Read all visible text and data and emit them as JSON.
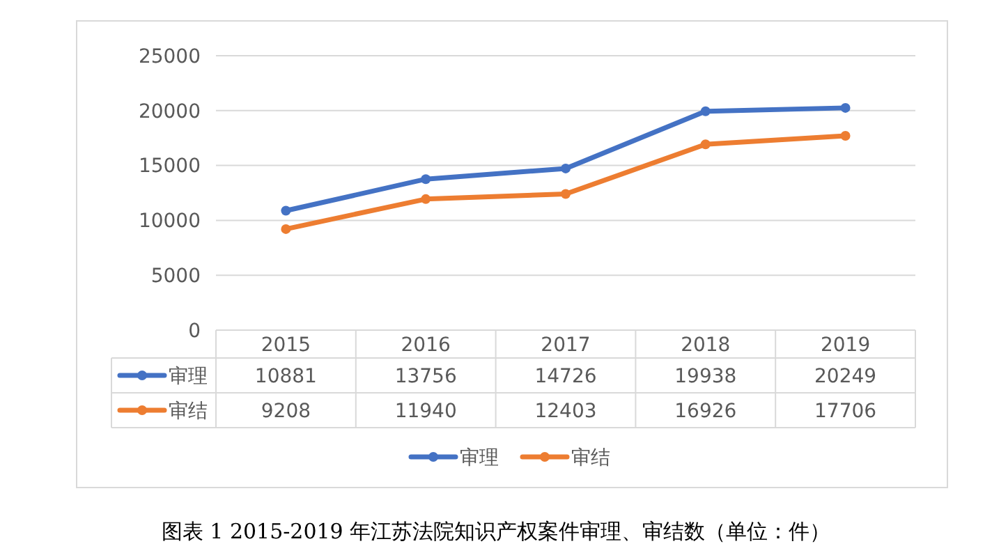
{
  "chart_data": {
    "type": "line",
    "categories": [
      "2015",
      "2016",
      "2017",
      "2018",
      "2019"
    ],
    "series": [
      {
        "name": "审理",
        "color": "#4472c4",
        "values": [
          10881,
          13756,
          14726,
          19938,
          20249
        ]
      },
      {
        "name": "审结",
        "color": "#ed7d31",
        "values": [
          9208,
          11940,
          12403,
          16926,
          17706
        ]
      }
    ],
    "ylim": [
      0,
      25000
    ],
    "yticks": [
      0,
      5000,
      10000,
      15000,
      20000,
      25000
    ],
    "grid": "y",
    "marker": "circle",
    "data_labels": true,
    "legend": "bottom",
    "annotations": [
      "图表 1  2015-2019 年江苏法院知识产权案件审理、审结数（单位：件）"
    ]
  }
}
